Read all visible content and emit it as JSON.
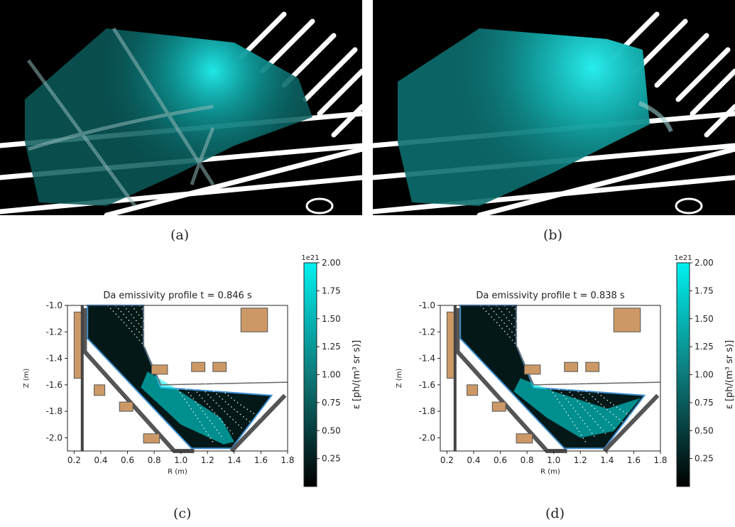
{
  "captions": [
    "(a)",
    "(b)",
    "(c)",
    "(d)"
  ],
  "colors": {
    "cyan": "#00f0f0",
    "photo_bg": "#000000",
    "structure": "#cc9966",
    "wall": "#555555"
  },
  "chart_data": [
    {
      "type": "heatmap",
      "title": "Da emissivity profile t = 0.846 s",
      "xlabel": "R (m)",
      "ylabel": "Z (m)",
      "xlim": [
        0.15,
        1.8
      ],
      "ylim": [
        -2.1,
        -1.0
      ],
      "xticks": [
        "0.2",
        "0.4",
        "0.6",
        "0.8",
        "1.0",
        "1.2",
        "1.4",
        "1.6",
        "1.8"
      ],
      "yticks": [
        "-1.0",
        "-1.2",
        "-1.4",
        "-1.6",
        "-1.8",
        "-2.0"
      ],
      "colorbar": {
        "label": "ε [ph/(m³ sr s)]",
        "multiplier": "1e21",
        "range": [
          0,
          2.0
        ],
        "ticks": [
          "2.00",
          "1.75",
          "1.50",
          "1.25",
          "1.00",
          "0.75",
          "0.50",
          "0.25"
        ]
      }
    },
    {
      "type": "heatmap",
      "title": "Da emissivity profile t = 0.838 s",
      "xlabel": "R (m)",
      "ylabel": "Z (m)",
      "xlim": [
        0.15,
        1.8
      ],
      "ylim": [
        -2.1,
        -1.0
      ],
      "xticks": [
        "0.2",
        "0.4",
        "0.6",
        "0.8",
        "1.0",
        "1.2",
        "1.4",
        "1.6",
        "1.8"
      ],
      "yticks": [
        "-1.0",
        "-1.2",
        "-1.4",
        "-1.6",
        "-1.8",
        "-2.0"
      ],
      "colorbar": {
        "label": "ε [ph/(m³ sr s)]",
        "multiplier": "1e21",
        "range": [
          0,
          2.0
        ],
        "ticks": [
          "2.00",
          "1.75",
          "1.50",
          "1.25",
          "1.00",
          "0.75",
          "0.50",
          "0.25"
        ]
      }
    }
  ]
}
